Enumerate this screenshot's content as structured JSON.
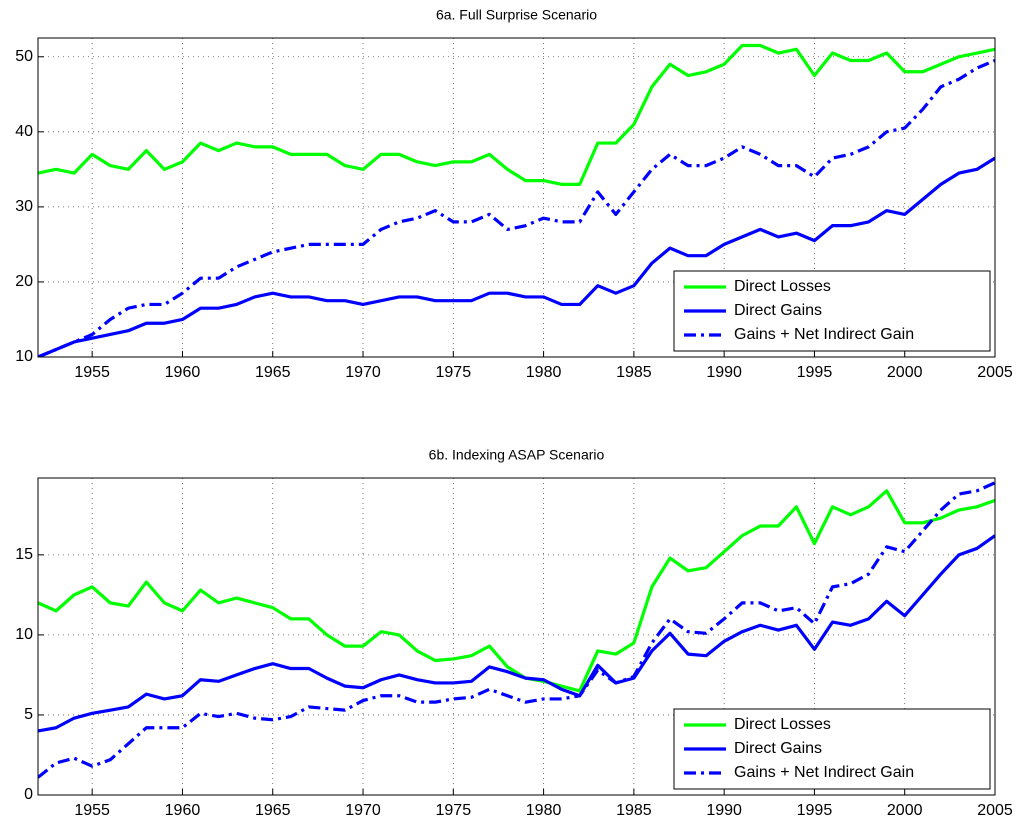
{
  "chart_data": [
    {
      "type": "line",
      "title": "6a. Full Surprise Scenario",
      "x": [
        1952,
        1953,
        1954,
        1955,
        1956,
        1957,
        1958,
        1959,
        1960,
        1961,
        1962,
        1963,
        1964,
        1965,
        1966,
        1967,
        1968,
        1969,
        1970,
        1971,
        1972,
        1973,
        1974,
        1975,
        1976,
        1977,
        1978,
        1979,
        1980,
        1981,
        1982,
        1983,
        1984,
        1985,
        1986,
        1987,
        1988,
        1989,
        1990,
        1991,
        1992,
        1993,
        1994,
        1995,
        1996,
        1997,
        1998,
        1999,
        2000,
        2001,
        2002,
        2003,
        2004,
        2005
      ],
      "series": [
        {
          "name": "Direct Losses",
          "color": "#00ff00",
          "line_style": "solid",
          "values": [
            34.5,
            35,
            34.5,
            37,
            35.5,
            35,
            37.5,
            35,
            36,
            38.5,
            37.5,
            38.5,
            38,
            38,
            37,
            37,
            37,
            35.5,
            35,
            37,
            37,
            36,
            35.5,
            36,
            36,
            37,
            35,
            33.5,
            33.5,
            33,
            33,
            38.5,
            38.5,
            41,
            46,
            49,
            47.5,
            48,
            49,
            51.5,
            51.5,
            50.5,
            51,
            47.5,
            50.5,
            49.5,
            49.5,
            50.5,
            48,
            48,
            49,
            50,
            50.5,
            51
          ]
        },
        {
          "name": "Direct Gains",
          "color": "#0000ff",
          "line_style": "solid",
          "values": [
            10,
            11,
            12,
            12.5,
            13,
            13.5,
            14.5,
            14.5,
            15,
            16.5,
            16.5,
            17,
            18,
            18.5,
            18,
            18,
            17.5,
            17.5,
            17,
            17.5,
            18,
            18,
            17.5,
            17.5,
            17.5,
            18.5,
            18.5,
            18,
            18,
            17,
            17,
            19.5,
            18.5,
            19.5,
            22.5,
            24.5,
            23.5,
            23.5,
            25,
            26,
            27,
            26,
            26.5,
            25.5,
            27.5,
            27.5,
            28,
            29.5,
            29,
            31,
            33,
            34.5,
            35,
            36.5
          ]
        },
        {
          "name": "Gains + Net Indirect Gain",
          "color": "#0000ff",
          "line_style": "dashdot",
          "values": [
            10,
            11,
            12,
            13,
            15,
            16.5,
            17,
            17,
            18.5,
            20.5,
            20.5,
            22,
            23,
            24,
            24.5,
            25,
            25,
            25,
            25,
            27,
            28,
            28.5,
            29.5,
            28,
            28,
            29,
            27,
            27.5,
            28.5,
            28,
            28,
            32,
            29,
            32,
            35,
            37,
            35.5,
            35.5,
            36.5,
            38,
            37,
            35.5,
            35.5,
            34,
            36.5,
            37,
            38,
            40,
            40.5,
            43,
            46,
            47,
            48.5,
            49.5
          ]
        }
      ],
      "xlim": [
        1952,
        2005
      ],
      "xticks": [
        1955,
        1960,
        1965,
        1970,
        1975,
        1980,
        1985,
        1990,
        1995,
        2000,
        2005
      ],
      "ylim": [
        10,
        52.5
      ],
      "yticks": [
        10,
        20,
        30,
        40,
        50
      ],
      "grid": true,
      "legend": "lower right"
    },
    {
      "type": "line",
      "title": "6b. Indexing ASAP Scenario",
      "x": [
        1952,
        1953,
        1954,
        1955,
        1956,
        1957,
        1958,
        1959,
        1960,
        1961,
        1962,
        1963,
        1964,
        1965,
        1966,
        1967,
        1968,
        1969,
        1970,
        1971,
        1972,
        1973,
        1974,
        1975,
        1976,
        1977,
        1978,
        1979,
        1980,
        1981,
        1982,
        1983,
        1984,
        1985,
        1986,
        1987,
        1988,
        1989,
        1990,
        1991,
        1992,
        1993,
        1994,
        1995,
        1996,
        1997,
        1998,
        1999,
        2000,
        2001,
        2002,
        2003,
        2004,
        2005
      ],
      "series": [
        {
          "name": "Direct Losses",
          "color": "#00ff00",
          "line_style": "solid",
          "values": [
            12,
            11.5,
            12.5,
            13,
            12,
            11.8,
            13.3,
            12,
            11.5,
            12.8,
            12,
            12.3,
            12,
            11.7,
            11,
            11,
            10,
            9.3,
            9.3,
            10.2,
            10,
            9,
            8.4,
            8.5,
            8.7,
            9.3,
            8,
            7.3,
            7.1,
            6.8,
            6.5,
            9,
            8.8,
            9.5,
            13,
            14.8,
            14,
            14.2,
            15.2,
            16.2,
            16.8,
            16.8,
            18,
            15.7,
            18,
            17.5,
            18,
            19,
            17,
            17,
            17.3,
            17.8,
            18,
            18.4
          ]
        },
        {
          "name": "Direct Gains",
          "color": "#0000ff",
          "line_style": "solid",
          "values": [
            4,
            4.2,
            4.8,
            5.1,
            5.3,
            5.5,
            6.3,
            6,
            6.2,
            7.2,
            7.1,
            7.5,
            7.9,
            8.2,
            7.9,
            7.9,
            7.3,
            6.8,
            6.7,
            7.2,
            7.5,
            7.2,
            7,
            7,
            7.1,
            8,
            7.7,
            7.3,
            7.2,
            6.6,
            6.2,
            8.1,
            7,
            7.3,
            9,
            10.1,
            8.8,
            8.7,
            9.6,
            10.2,
            10.6,
            10.3,
            10.6,
            9.1,
            10.8,
            10.6,
            11,
            12.1,
            11.2,
            12.5,
            13.8,
            15,
            15.4,
            16.2
          ]
        },
        {
          "name": "Gains + Net Indirect Gain",
          "color": "#0000ff",
          "line_style": "dashdot",
          "values": [
            1.1,
            2,
            2.3,
            1.8,
            2.2,
            3.2,
            4.2,
            4.2,
            4.2,
            5.1,
            4.9,
            5.1,
            4.8,
            4.7,
            4.9,
            5.5,
            5.4,
            5.3,
            5.9,
            6.2,
            6.2,
            5.8,
            5.8,
            6,
            6.1,
            6.6,
            6.2,
            5.8,
            6,
            6,
            6.2,
            7.8,
            7,
            7.4,
            9.5,
            11,
            10.2,
            10.1,
            11,
            12,
            12,
            11.5,
            11.7,
            10.7,
            13,
            13.2,
            13.8,
            15.5,
            15.2,
            16.5,
            17.8,
            18.8,
            19,
            19.5
          ]
        }
      ],
      "xlim": [
        1952,
        2005
      ],
      "xticks": [
        1955,
        1960,
        1965,
        1970,
        1975,
        1980,
        1985,
        1990,
        1995,
        2000,
        2005
      ],
      "ylim": [
        0,
        19.8
      ],
      "yticks": [
        0,
        5,
        10,
        15
      ],
      "grid": true,
      "legend": "lower right"
    }
  ]
}
